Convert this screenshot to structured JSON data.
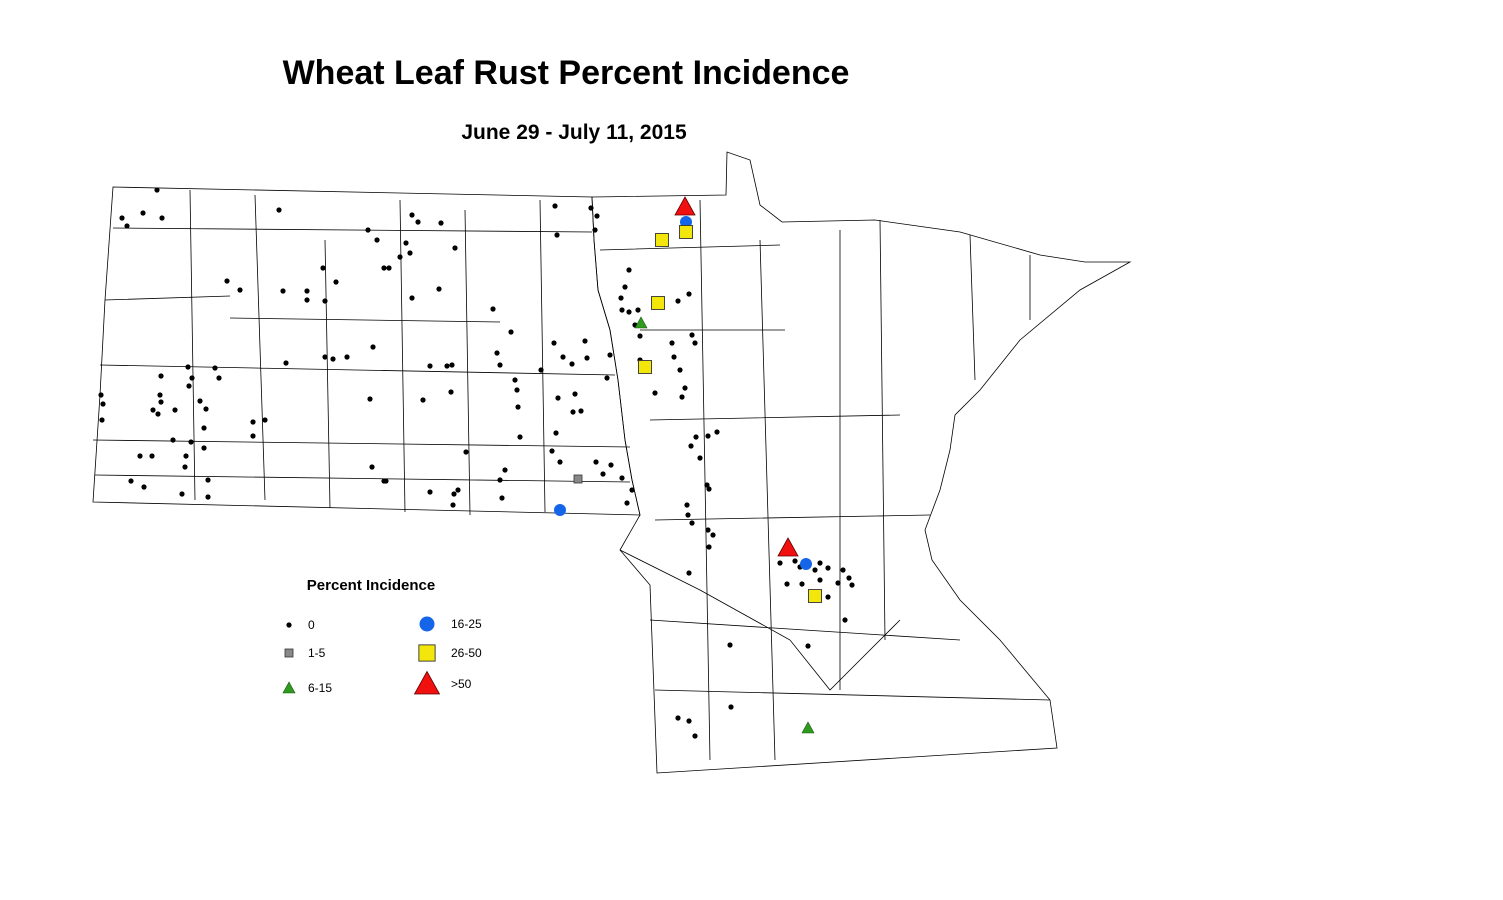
{
  "title": "Wheat Leaf Rust Percent Incidence",
  "subtitle": "June 29 - July 11, 2015",
  "legend": {
    "title": "Percent Incidence",
    "items": [
      {
        "label": "0"
      },
      {
        "label": "1-5"
      },
      {
        "label": "6-15"
      },
      {
        "label": "16-25"
      },
      {
        "label": "26-50"
      },
      {
        "label": ">50"
      }
    ]
  }
}
